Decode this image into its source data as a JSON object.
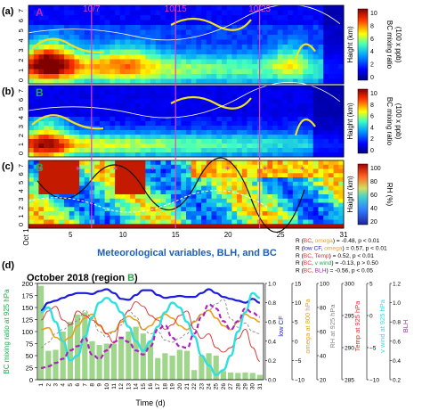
{
  "panel_labels": [
    "(a)",
    "(b)",
    "(c)",
    "(d)"
  ],
  "region_labels": [
    "A",
    "B",
    "B"
  ],
  "date_markers": [
    "10/7",
    "10/15",
    "10/23"
  ],
  "marker_days": [
    7,
    15,
    23
  ],
  "colors": {
    "magenta": "#e040c8",
    "region_a": "#d020b0",
    "region_b": "#2aa84a",
    "section_title": "#1f5fb4",
    "contour_yellow": "#f0e020",
    "bar_green": "#9ed68c",
    "blue": "#1d1ddb",
    "orange": "#e8a020",
    "red": "#e03030",
    "cyan": "#30e0e0",
    "purple": "#b020c0",
    "gray": "#888888"
  },
  "heatmap_panels": [
    {
      "id": "a",
      "ylabel": "Haight (km)",
      "cb_label_1": "BC mixing ratio",
      "cb_label_2": "(100 x ppb)"
    },
    {
      "id": "b",
      "ylabel": "Haight (km)",
      "cb_label_1": "BC mixing ratio",
      "cb_label_2": "(100 x ppb)"
    },
    {
      "id": "c",
      "ylabel": "Haight (km)",
      "cb_label_1": "RH (%)",
      "cb_label_2": ""
    }
  ],
  "heights_yticks": [
    "0",
    "1",
    "2",
    "3",
    "4",
    "5",
    "6",
    "7"
  ],
  "bc_colorbar_ticks": [
    "10",
    "8",
    "6",
    "4",
    "2",
    "0"
  ],
  "rh_colorbar_ticks": [
    "100",
    "80",
    "60",
    "40",
    "20"
  ],
  "heatmap_xticks": [
    "Oct 1",
    "5",
    "10",
    "15",
    "20",
    "25",
    "31"
  ],
  "section_title": "Meteorological variables, BLH, and BC",
  "stats": [
    {
      "pre": "R (",
      "a": "BC",
      "ac": "#e03030",
      "mid": ", ",
      "b": "omega",
      "bc": "#e8a020",
      "post": ") = -0.48, p < 0.01"
    },
    {
      "pre": "R (",
      "a": "low CF",
      "ac": "#1d1ddb",
      "mid": ", ",
      "b": "omega",
      "bc": "#e8a020",
      "post": ") = 0.57, p < 0.01"
    },
    {
      "pre": "R (",
      "a": "BC",
      "ac": "#e03030",
      "mid": ", ",
      "b": "Temp",
      "bc": "#e03030",
      "post": ") = 0.52, p < 0.01"
    },
    {
      "pre": "R (",
      "a": "BC",
      "ac": "#e03030",
      "mid": ", ",
      "b": "v wind",
      "bc": "#2aa84a",
      "post": ") = -0.13, p > 0.50"
    },
    {
      "pre": "R (",
      "a": "BC",
      "ac": "#e03030",
      "mid": ", ",
      "b": "BLH",
      "bc": "#b020c0",
      "post": ") = -0.56, p < 0.05"
    }
  ],
  "panel_d": {
    "title_prefix": "October 2018 (region ",
    "title_region": "B",
    "title_suffix": ")",
    "xlabel": "Time (d)",
    "ylabel_left": "BC mixing ratio at 925 hPa",
    "left_ticks": [
      "0",
      "25",
      "50",
      "75",
      "100",
      "125",
      "150",
      "175",
      "200"
    ],
    "axes": [
      {
        "label": "low CF",
        "color": "#1d1ddb",
        "ticks": [
          "0.0",
          "0.2",
          "0.4",
          "0.6",
          "0.8",
          "1.0"
        ]
      },
      {
        "label": "omega at 800 hPa",
        "color": "#e8a020",
        "ticks": [
          "−10",
          "−5",
          "0",
          "5",
          "10",
          "15"
        ]
      },
      {
        "label": "RH at 925 hPa",
        "color": "#888888",
        "ticks": [
          "20",
          "40",
          "60",
          "80",
          "100"
        ]
      },
      {
        "label": "Temp at 925 hPa",
        "color": "#e03030",
        "ticks": [
          "285",
          "290",
          "295",
          "300"
        ]
      },
      {
        "label": "v wind at 925 hPa",
        "color": "#30e0e0",
        "ticks": [
          "−10",
          "−5",
          "0",
          "5"
        ]
      },
      {
        "label": "BLH",
        "color": "#b020c0",
        "ticks": [
          "0.2",
          "0.4",
          "0.6",
          "0.8",
          "1.0",
          "1.2"
        ]
      }
    ]
  },
  "chart_data": {
    "type": "bar",
    "title": "October 2018 (region B)",
    "xlabel": "Time (d)",
    "ylabel": "BC mixing ratio at 925 hPa",
    "categories": [
      "1",
      "2",
      "3",
      "4",
      "5",
      "6",
      "7",
      "8",
      "9",
      "10",
      "11",
      "12",
      "13",
      "14",
      "15",
      "16",
      "17",
      "18",
      "19",
      "20",
      "21",
      "22",
      "23",
      "24",
      "25",
      "26",
      "27",
      "28",
      "29",
      "30",
      "31"
    ],
    "ylim": [
      0,
      200
    ],
    "bc_values": [
      195,
      60,
      62,
      100,
      120,
      135,
      140,
      80,
      72,
      75,
      75,
      90,
      100,
      110,
      96,
      80,
      45,
      55,
      50,
      62,
      60,
      20,
      50,
      55,
      50,
      18,
      15,
      14,
      15,
      14,
      10
    ],
    "series": [
      {
        "name": "low CF",
        "ylim": [
          0,
          1.0
        ],
        "values": [
          0.72,
          0.8,
          0.82,
          0.85,
          0.88,
          0.9,
          0.9,
          0.89,
          0.92,
          0.94,
          0.9,
          0.84,
          0.83,
          0.88,
          0.93,
          0.93,
          0.88,
          0.85,
          0.86,
          0.87,
          0.86,
          0.86,
          0.9,
          0.94,
          0.9,
          0.86,
          0.84,
          0.82,
          0.8,
          0.84,
          0.8
        ]
      },
      {
        "name": "omega at 800 hPa",
        "ylim": [
          -10,
          15
        ],
        "values": [
          3,
          3.5,
          1,
          0,
          1,
          4,
          6,
          7,
          4,
          2,
          2.5,
          5,
          6.5,
          5.5,
          3,
          4,
          6,
          7,
          6,
          4,
          3,
          5,
          7,
          8,
          6,
          4,
          3,
          5,
          7,
          6,
          5
        ]
      },
      {
        "name": "RH at 925 hPa",
        "ylim": [
          15,
          105
        ],
        "values": [
          45,
          50,
          58,
          62,
          66,
          70,
          80,
          72,
          60,
          55,
          60,
          66,
          80,
          74,
          62,
          58,
          60,
          52,
          50,
          54,
          58,
          70,
          76,
          80,
          86,
          90,
          72,
          64,
          68,
          60,
          58
        ]
      },
      {
        "name": "Temp at 925 hPa",
        "ylim": [
          282,
          303
        ],
        "values": [
          295,
          297,
          298,
          295,
          294,
          297,
          296,
          295,
          294,
          292,
          290,
          295,
          297,
          299,
          298,
          296,
          295,
          293,
          294,
          296,
          297,
          293,
          291,
          292,
          289,
          288,
          289,
          291,
          293,
          289,
          286
        ]
      },
      {
        "name": "v wind at 925 hPa",
        "ylim": [
          -12,
          8
        ],
        "values": [
          2,
          3,
          0,
          -4,
          -8,
          -7,
          -3,
          1,
          4,
          5,
          4,
          2,
          -1,
          -4,
          -6,
          -4,
          -1,
          2,
          4,
          3,
          0,
          -3,
          -7,
          -9,
          -11,
          -10,
          -7,
          -2,
          2,
          6,
          5
        ]
      },
      {
        "name": "BLH",
        "ylim": [
          0.1,
          1.25
        ],
        "values": [
          0.24,
          0.26,
          0.3,
          0.35,
          0.45,
          0.5,
          0.6,
          0.4,
          0.35,
          0.45,
          0.55,
          0.6,
          0.55,
          0.45,
          0.4,
          0.5,
          0.7,
          0.75,
          0.6,
          0.5,
          0.48,
          0.65,
          0.85,
          1.0,
          0.95,
          0.8,
          0.7,
          0.8,
          0.95,
          0.9,
          0.85
        ]
      }
    ]
  }
}
